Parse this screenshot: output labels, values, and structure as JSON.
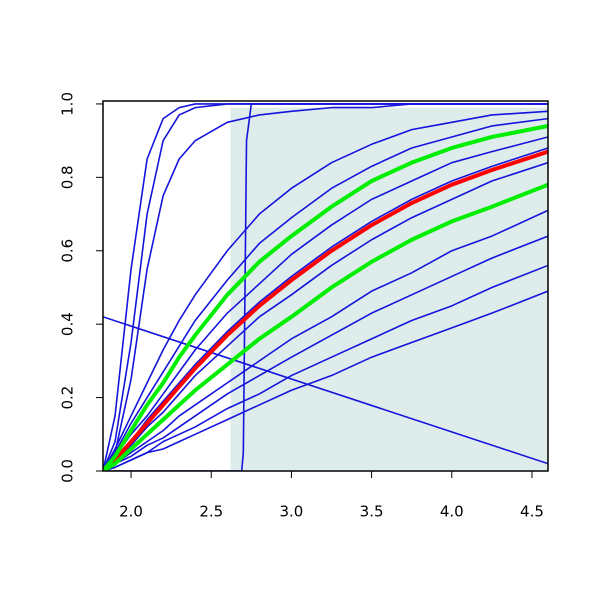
{
  "chart_data": {
    "type": "line",
    "xlim": [
      1.825,
      4.6
    ],
    "ylim": [
      0,
      1.008
    ],
    "xticks": [
      {
        "value": 2,
        "label": "2.0"
      },
      {
        "value": 2.5,
        "label": "2.5"
      },
      {
        "value": 3,
        "label": "3.0"
      },
      {
        "value": 3.5,
        "label": "3.5"
      },
      {
        "value": 4,
        "label": "4.0"
      },
      {
        "value": 4.5,
        "label": "4.5"
      }
    ],
    "yticks": [
      {
        "value": 0,
        "label": "0.0"
      },
      0.2,
      0.4,
      0.6,
      0.8,
      {
        "value": 1,
        "label": "1.0"
      }
    ],
    "shaded_region": {
      "x": [
        2.62,
        4.6
      ],
      "y": [
        0,
        0.99
      ],
      "color": "#deecec"
    },
    "x": [
      1.825,
      1.9,
      2.0,
      2.1,
      2.2,
      2.3,
      2.4,
      2.6,
      2.8,
      3.0,
      3.25,
      3.5,
      3.75,
      4.0,
      4.25,
      4.6
    ],
    "series": [
      {
        "color": "#1414dc",
        "width": 1.6,
        "values": [
          0,
          0.06,
          0.15,
          0.24,
          0.33,
          0.41,
          0.48,
          0.6,
          0.7,
          0.77,
          0.84,
          0.89,
          0.93,
          0.95,
          0.97,
          0.98
        ]
      },
      {
        "color": "#1414dc",
        "width": 1.6,
        "values": [
          0,
          0.05,
          0.13,
          0.2,
          0.27,
          0.34,
          0.41,
          0.52,
          0.62,
          0.69,
          0.77,
          0.83,
          0.88,
          0.91,
          0.94,
          0.96
        ]
      },
      {
        "color": "#1414dc",
        "width": 1.6,
        "values": [
          0,
          0.04,
          0.1,
          0.15,
          0.21,
          0.27,
          0.33,
          0.43,
          0.51,
          0.59,
          0.67,
          0.74,
          0.79,
          0.84,
          0.87,
          0.91
        ]
      },
      {
        "color": "#1414dc",
        "width": 1.6,
        "values": [
          0,
          0.03,
          0.08,
          0.14,
          0.19,
          0.24,
          0.29,
          0.38,
          0.46,
          0.53,
          0.61,
          0.68,
          0.74,
          0.79,
          0.83,
          0.88
        ]
      },
      {
        "color": "#1414dc",
        "width": 1.6,
        "values": [
          0,
          0.03,
          0.07,
          0.12,
          0.16,
          0.21,
          0.26,
          0.34,
          0.42,
          0.48,
          0.56,
          0.63,
          0.69,
          0.74,
          0.79,
          0.84
        ]
      },
      {
        "color": "#1414dc",
        "width": 1.6,
        "values": [
          0,
          0.02,
          0.05,
          0.08,
          0.11,
          0.15,
          0.18,
          0.24,
          0.3,
          0.36,
          0.42,
          0.49,
          0.54,
          0.6,
          0.64,
          0.71
        ]
      },
      {
        "color": "#1414dc",
        "width": 1.6,
        "values": [
          0,
          0.02,
          0.04,
          0.07,
          0.09,
          0.12,
          0.15,
          0.21,
          0.26,
          0.31,
          0.37,
          0.43,
          0.48,
          0.53,
          0.58,
          0.64
        ]
      },
      {
        "color": "#1414dc",
        "width": 1.6,
        "values": [
          0,
          0.01,
          0.03,
          0.05,
          0.08,
          0.1,
          0.12,
          0.17,
          0.21,
          0.26,
          0.31,
          0.36,
          0.41,
          0.45,
          0.5,
          0.56
        ]
      },
      {
        "color": "#1414dc",
        "width": 1.6,
        "values": [
          0,
          0.01,
          0.03,
          0.05,
          0.06,
          0.08,
          0.1,
          0.14,
          0.18,
          0.22,
          0.26,
          0.31,
          0.35,
          0.39,
          0.43,
          0.49
        ]
      },
      {
        "color": "#1414dc",
        "width": 1.6,
        "values": [
          0,
          0.15,
          0.55,
          0.85,
          0.96,
          0.99,
          1.0,
          1.0,
          1.0,
          1.0,
          1.0,
          1.0,
          1.0,
          1.0,
          1.0,
          1.0
        ]
      },
      {
        "color": "#1414dc",
        "width": 1.6,
        "values": [
          0,
          0.08,
          0.35,
          0.7,
          0.9,
          0.97,
          0.99,
          1.0,
          1.0,
          1.0,
          1.0,
          1.0,
          1.0,
          1.0,
          1.0,
          1.0
        ]
      },
      {
        "color": "#1414dc",
        "width": 1.6,
        "values": [
          0,
          0.05,
          0.25,
          0.55,
          0.75,
          0.85,
          0.9,
          0.95,
          0.97,
          0.98,
          0.99,
          0.99,
          1.0,
          1.0,
          1.0,
          1.0
        ]
      },
      {
        "color": "#1414dc",
        "width": 1.6,
        "x": [
          1.825,
          2.69,
          2.7,
          2.72,
          2.75,
          4.6
        ],
        "values": [
          0,
          0,
          0.05,
          0.9,
          1.0,
          1.0
        ]
      },
      {
        "color": "#1414dc",
        "width": 1.6,
        "x": [
          1.825,
          4.6
        ],
        "values": [
          0.42,
          0.02
        ]
      },
      {
        "color": "#ff0000",
        "width": 4,
        "values": [
          0,
          0.03,
          0.08,
          0.13,
          0.18,
          0.23,
          0.28,
          0.37,
          0.45,
          0.52,
          0.6,
          0.67,
          0.73,
          0.78,
          0.82,
          0.87
        ]
      },
      {
        "color": "#00ee00",
        "width": 4,
        "values": [
          0,
          0.04,
          0.11,
          0.18,
          0.24,
          0.31,
          0.37,
          0.48,
          0.57,
          0.64,
          0.72,
          0.79,
          0.84,
          0.88,
          0.91,
          0.94
        ]
      },
      {
        "color": "#00ee00",
        "width": 4,
        "values": [
          0,
          0.02,
          0.06,
          0.1,
          0.14,
          0.18,
          0.22,
          0.29,
          0.36,
          0.42,
          0.5,
          0.57,
          0.63,
          0.68,
          0.72,
          0.78
        ]
      }
    ]
  }
}
